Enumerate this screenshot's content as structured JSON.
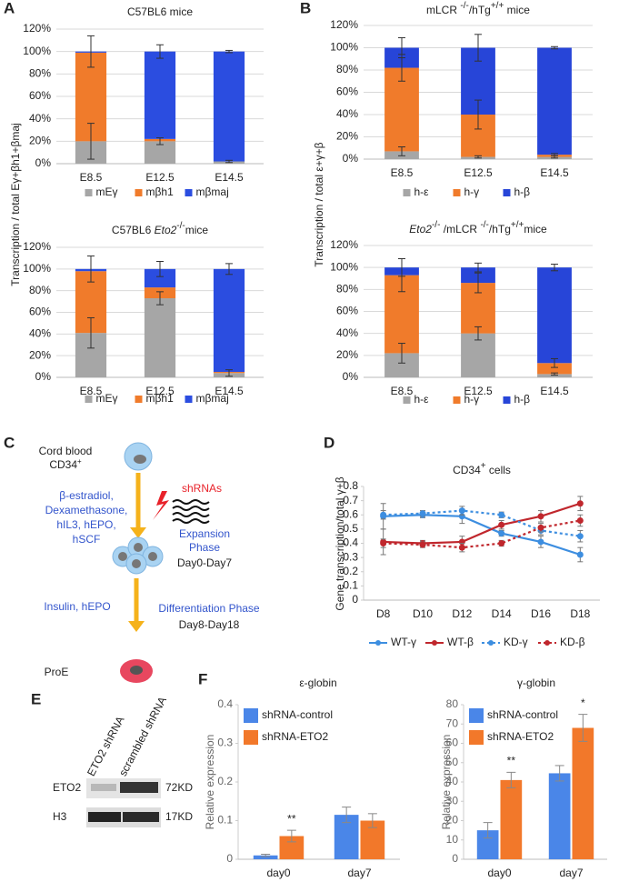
{
  "panel_labels": [
    "A",
    "B",
    "C",
    "D",
    "E",
    "F"
  ],
  "chart_data": [
    {
      "type": "stacked_bar",
      "title": "C57BL6 mice",
      "ylabel": "Transcription / total Eγ+βh1+βmaj",
      "categories": [
        "E8.5",
        "E12.5",
        "E14.5"
      ],
      "series": [
        {
          "name": "mEγ",
          "color": "#a6a6a6",
          "values": [
            20,
            20,
            2
          ],
          "errors": [
            16,
            3,
            1
          ]
        },
        {
          "name": "mβh1",
          "color": "#f07b2b",
          "values": [
            79,
            2,
            0
          ]
        },
        {
          "name": "mβmaj",
          "color": "#2b4de0",
          "values": [
            1,
            78,
            98
          ],
          "errors": [
            14,
            6,
            1
          ]
        }
      ],
      "ylim": [
        0,
        120
      ],
      "yticks": [
        {
          "value": 0,
          "label": "0%"
        },
        {
          "value": 20,
          "label": "20%"
        },
        {
          "value": 40,
          "label": "40%"
        },
        {
          "value": 60,
          "label": "60%"
        },
        {
          "value": 80,
          "label": "80%"
        },
        {
          "value": 100,
          "label": "100%"
        },
        {
          "value": 120,
          "label": "120%"
        }
      ],
      "grid": true,
      "legend": "bottom"
    },
    {
      "type": "stacked_bar",
      "title_parts": [
        {
          "text": "C57BL6 "
        },
        {
          "text": "Eto2",
          "style": "italic"
        },
        {
          "text": "-/-",
          "style": "sup"
        },
        {
          "text": "mice"
        }
      ],
      "categories": [
        "E8.5",
        "E12.5",
        "E14.5"
      ],
      "series": [
        {
          "name": "mEγ",
          "color": "#a6a6a6",
          "values": [
            41,
            73,
            4
          ],
          "errors": [
            14,
            6,
            3
          ]
        },
        {
          "name": "mβh1",
          "color": "#f07b2b",
          "values": [
            57,
            10,
            1
          ]
        },
        {
          "name": "mβmaj",
          "color": "#2b4de0",
          "values": [
            2,
            17,
            95
          ],
          "errors": [
            12,
            7,
            5
          ]
        }
      ],
      "ylim": [
        0,
        120
      ],
      "yticks": [
        {
          "value": 0,
          "label": "0%"
        },
        {
          "value": 20,
          "label": "20%"
        },
        {
          "value": 40,
          "label": "40%"
        },
        {
          "value": 60,
          "label": "60%"
        },
        {
          "value": 80,
          "label": "80%"
        },
        {
          "value": 100,
          "label": "100%"
        },
        {
          "value": 120,
          "label": "120%"
        }
      ],
      "grid": true,
      "legend": "bottom"
    },
    {
      "type": "stacked_bar",
      "ylabel": "Transcription / total ε+γ+β",
      "title_parts": [
        {
          "text": "mLCR "
        },
        {
          "text": "-/-",
          "style": "sup"
        },
        {
          "text": "/hTg"
        },
        {
          "text": "+/+",
          "style": "sup"
        },
        {
          "text": " mice"
        }
      ],
      "categories": [
        "E8.5",
        "E12.5",
        "E14.5"
      ],
      "series": [
        {
          "name": "h-ε",
          "color": "#a6a6a6",
          "values": [
            7,
            2,
            2
          ],
          "errors": [
            4,
            1,
            1
          ]
        },
        {
          "name": "h-γ",
          "color": "#f07b2b",
          "values": [
            75,
            38,
            2
          ],
          "errors": [
            12,
            13,
            1
          ]
        },
        {
          "name": "h-β",
          "color": "#2745d8",
          "values": [
            18,
            60,
            96
          ],
          "errors": [
            9,
            12,
            1
          ]
        }
      ],
      "ylim": [
        0,
        120
      ],
      "yticks": [
        {
          "value": 0,
          "label": "0%"
        },
        {
          "value": 20,
          "label": "20%"
        },
        {
          "value": 40,
          "label": "40%"
        },
        {
          "value": 60,
          "label": "60%"
        },
        {
          "value": 80,
          "label": "80%"
        },
        {
          "value": 100,
          "label": "100%"
        },
        {
          "value": 120,
          "label": "120%"
        }
      ],
      "grid": true,
      "legend": "bottom"
    },
    {
      "type": "stacked_bar",
      "title_parts": [
        {
          "text": "Eto2",
          "style": "italic"
        },
        {
          "text": "-/-",
          "style": "sup"
        },
        {
          "text": " /mLCR "
        },
        {
          "text": "-/-",
          "style": "sup"
        },
        {
          "text": "/hTg"
        },
        {
          "text": "+/+",
          "style": "sup"
        },
        {
          "text": "mice"
        }
      ],
      "categories": [
        "E8.5",
        "E12.5",
        "E14.5"
      ],
      "series": [
        {
          "name": "h-ε",
          "color": "#a6a6a6",
          "values": [
            22,
            40,
            3
          ],
          "errors": [
            9,
            6,
            1
          ]
        },
        {
          "name": "h-γ",
          "color": "#f07b2b",
          "values": [
            71,
            46,
            10
          ],
          "errors": [
            15,
            9,
            4
          ]
        },
        {
          "name": "h-β",
          "color": "#2745d8",
          "values": [
            7,
            14,
            87
          ],
          "errors": [
            8,
            4,
            3
          ]
        }
      ],
      "ylim": [
        0,
        120
      ],
      "yticks": [
        {
          "value": 0,
          "label": "0%"
        },
        {
          "value": 20,
          "label": "20%"
        },
        {
          "value": 40,
          "label": "40%"
        },
        {
          "value": 60,
          "label": "60%"
        },
        {
          "value": 80,
          "label": "80%"
        },
        {
          "value": 100,
          "label": "100%"
        },
        {
          "value": 120,
          "label": "120%"
        }
      ],
      "grid": true,
      "legend": "bottom"
    },
    {
      "type": "line",
      "ylabel": "Gene transcription/total γ+β",
      "title_parts": [
        {
          "text": "CD34"
        },
        {
          "text": "+",
          "style": "sup"
        },
        {
          "text": " cells"
        }
      ],
      "categories": [
        "D8",
        "D10",
        "D12",
        "D14",
        "D16",
        "D18"
      ],
      "series": [
        {
          "name": "WT-γ",
          "color": "#3d8ee0",
          "dash": false,
          "values": [
            0.59,
            0.6,
            0.59,
            0.47,
            0.41,
            0.32
          ],
          "errors": [
            0.09,
            0.02,
            0.05,
            0.02,
            0.04,
            0.05
          ]
        },
        {
          "name": "WT-β",
          "color": "#c0272d",
          "dash": false,
          "values": [
            0.41,
            0.4,
            0.41,
            0.53,
            0.59,
            0.68
          ],
          "errors": [
            0.09,
            0.02,
            0.04,
            0.03,
            0.04,
            0.05
          ]
        },
        {
          "name": "KD-γ",
          "color": "#3d8ee0",
          "dash": true,
          "values": [
            0.6,
            0.61,
            0.63,
            0.6,
            0.49,
            0.45
          ],
          "errors": [
            0.03,
            0.02,
            0.03,
            0.02,
            0.03,
            0.04
          ]
        },
        {
          "name": "KD-β",
          "color": "#c0272d",
          "dash": true,
          "values": [
            0.4,
            0.39,
            0.37,
            0.4,
            0.51,
            0.56
          ],
          "errors": [
            0.03,
            0.02,
            0.03,
            0.02,
            0.03,
            0.04
          ]
        }
      ],
      "ylim": [
        0,
        0.8
      ],
      "yticks": [
        0,
        0.1,
        0.2,
        0.3,
        0.4,
        0.5,
        0.6,
        0.7,
        0.8
      ],
      "grid": false,
      "legend": "bottom"
    },
    {
      "type": "grouped_bar",
      "title": "ε-globin",
      "ylabel": "Relative expression",
      "categories": [
        "day0",
        "day7"
      ],
      "series": [
        {
          "name": "shRNA-control",
          "color": "#4a86e8",
          "values": [
            0.01,
            0.115
          ],
          "errors": [
            0.003,
            0.02
          ]
        },
        {
          "name": "shRNA-ETO2",
          "color": "#f2782a",
          "values": [
            0.06,
            0.1
          ],
          "errors": [
            0.015,
            0.018
          ]
        }
      ],
      "annotations": [
        {
          "text": "**",
          "x": "day0",
          "series": "shRNA-ETO2"
        }
      ],
      "ylim": [
        0,
        0.4
      ],
      "yticks": [
        0,
        0.1,
        0.2,
        0.3,
        0.4
      ],
      "grid": false,
      "legend": "top-left"
    },
    {
      "type": "grouped_bar",
      "title": "γ-globin",
      "ylabel": "Relative expression",
      "categories": [
        "day0",
        "day7"
      ],
      "series": [
        {
          "name": "shRNA-control",
          "color": "#4a86e8",
          "values": [
            15,
            44.5
          ],
          "errors": [
            4,
            4
          ]
        },
        {
          "name": "shRNA-ETO2",
          "color": "#f2782a",
          "values": [
            41,
            68
          ],
          "errors": [
            4,
            7
          ]
        }
      ],
      "annotations": [
        {
          "text": "**",
          "x": "day0",
          "series": "shRNA-ETO2"
        },
        {
          "text": "*",
          "x": "day7",
          "series": "shRNA-ETO2"
        }
      ],
      "ylim": [
        0,
        80
      ],
      "yticks": [
        0,
        10,
        20,
        30,
        40,
        50,
        60,
        70,
        80
      ],
      "grid": false,
      "legend": "top-left"
    }
  ],
  "diagram_c": {
    "cord_blood": "Cord blood",
    "cd34": "CD34",
    "cd34_sup": "+",
    "shrnas": "shRNAs",
    "factors": [
      "β-estradiol,",
      "Dexamethasone,",
      "hIL3, hEPO,",
      "hSCF"
    ],
    "expansion": [
      "Expansion",
      "Phase"
    ],
    "expansion_days": "Day0-Day7",
    "diff_factors": "Insulin, hEPO",
    "differentiation": "Differentiation Phase",
    "diff_days": "Day8-Day18",
    "proe": "ProE"
  },
  "blot_e": {
    "lanes": [
      "ETO2 shRNA",
      "scrambled shRNA"
    ],
    "rows": [
      {
        "protein": "ETO2",
        "size": "72KD"
      },
      {
        "protein": "H3",
        "size": "17KD"
      }
    ]
  }
}
